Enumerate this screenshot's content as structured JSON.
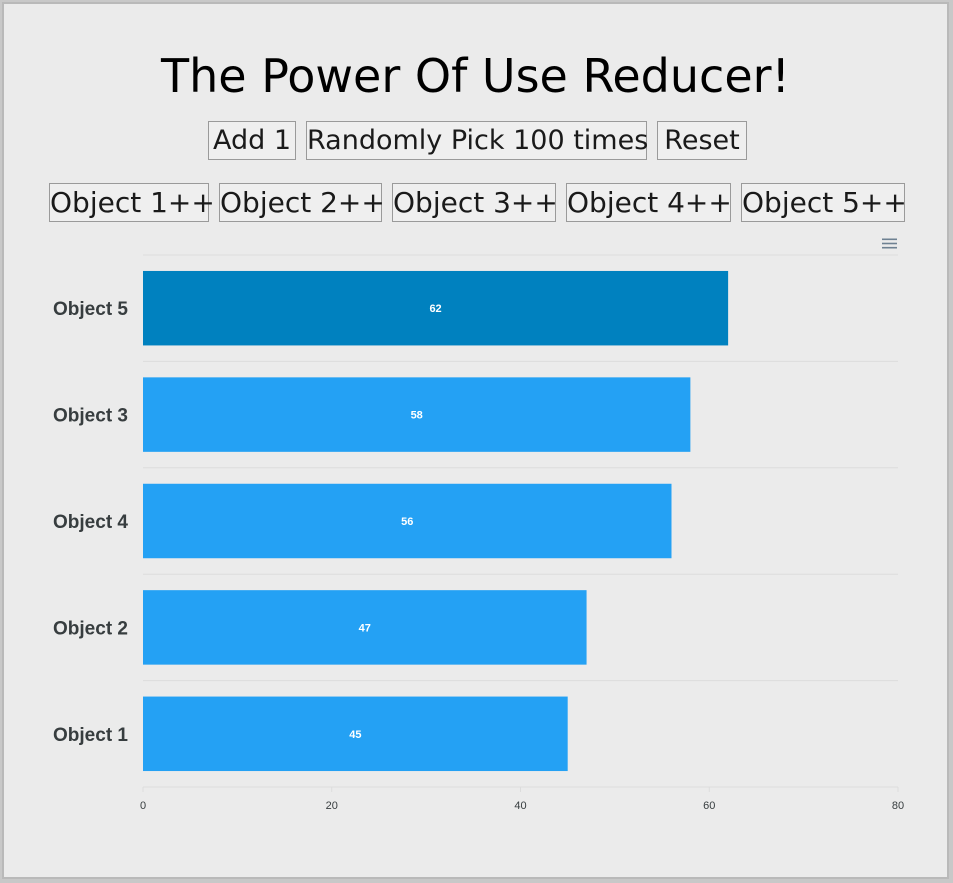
{
  "title": "The Power Of Use Reducer!",
  "controls": {
    "add_label": "Add 1",
    "random_label": "Randomly Pick 100 times",
    "reset_label": "Reset"
  },
  "object_buttons": [
    "Object 1++",
    "Object 2++",
    "Object 3++",
    "Object 4++",
    "Object 5++"
  ],
  "chart_menu_icon": "hamburger-menu-icon",
  "colors": {
    "highlight": "#0081bf",
    "bar": "#24a1f4",
    "background": "#ebebeb",
    "grid": "#dcdcdc"
  },
  "chart_data": {
    "type": "bar",
    "orientation": "horizontal",
    "categories": [
      "Object 5",
      "Object 3",
      "Object 4",
      "Object 2",
      "Object 1"
    ],
    "values": [
      62,
      58,
      56,
      47,
      45
    ],
    "data_labels": true,
    "highlighted": "Object 5",
    "xlim": [
      0,
      80
    ],
    "xticks": [
      0,
      20,
      40,
      60,
      80
    ],
    "grid": true,
    "title": "",
    "xlabel": "",
    "ylabel": ""
  }
}
